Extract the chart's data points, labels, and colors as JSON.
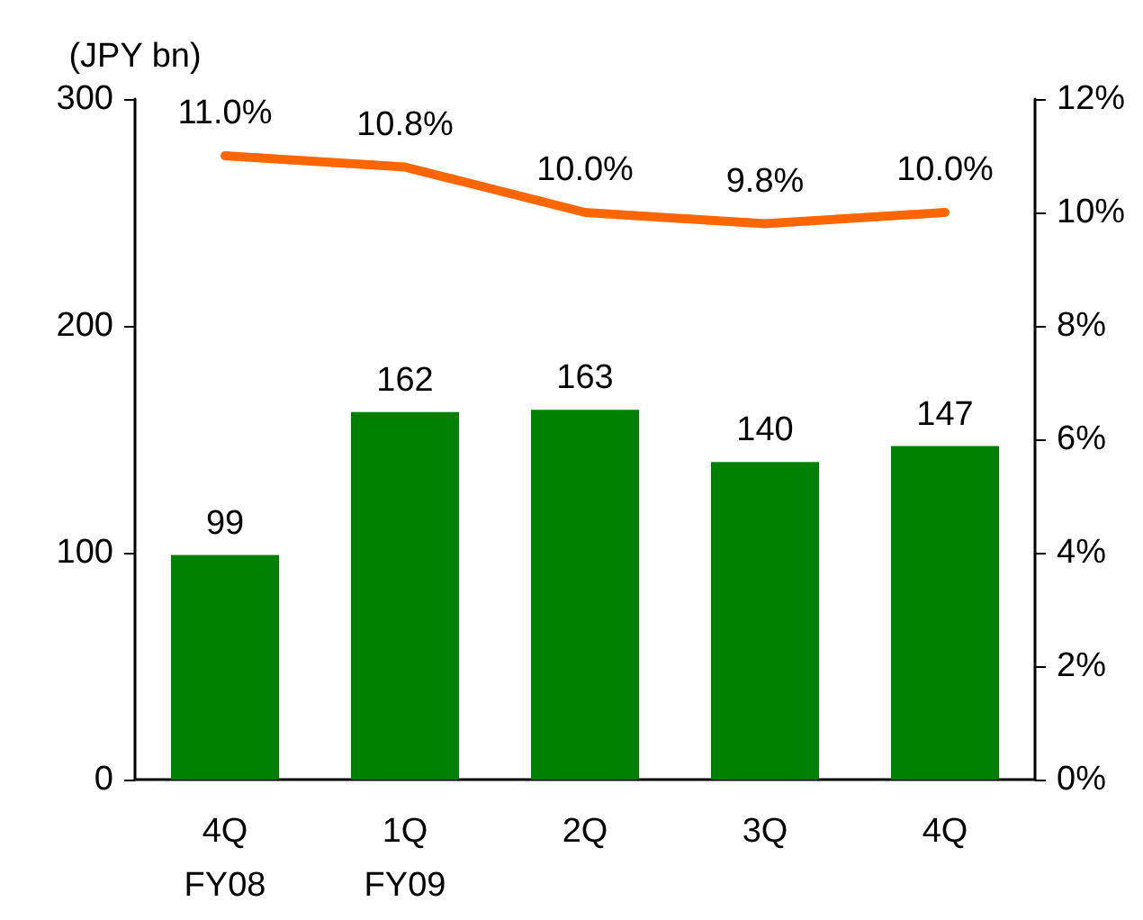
{
  "chart_data": {
    "type": "bar",
    "ylabel": "(JPY bn)",
    "categories": [
      "4Q\nFY08",
      "1Q\nFY09",
      "2Q",
      "3Q",
      "4Q"
    ],
    "series": [
      {
        "color": "#008000",
        "values": [
          99,
          162,
          163,
          140,
          147
        ],
        "value_labels": [
          "99",
          "162",
          "163",
          "140",
          "147"
        ]
      },
      {
        "type": "line",
        "axis": "y2",
        "color": "#ff6600",
        "values": [
          11.0,
          10.8,
          10.0,
          9.8,
          10.0
        ],
        "value_labels": [
          "11.0%",
          "10.8%",
          "10.0%",
          "9.8%",
          "10.0%"
        ]
      }
    ],
    "ylim": [
      0,
      300
    ],
    "yticks": [
      0,
      100,
      200,
      300
    ],
    "y2lim": [
      0,
      12
    ],
    "y2ticks": [
      {
        "value": 0,
        "label": "0%"
      },
      {
        "value": 2,
        "label": "2%"
      },
      {
        "value": 4,
        "label": "4%"
      },
      {
        "value": 6,
        "label": "6%"
      },
      {
        "value": 8,
        "label": "8%"
      },
      {
        "value": 10,
        "label": "10%"
      },
      {
        "value": 12,
        "label": "12%"
      }
    ],
    "grid": false,
    "marker": "none"
  }
}
